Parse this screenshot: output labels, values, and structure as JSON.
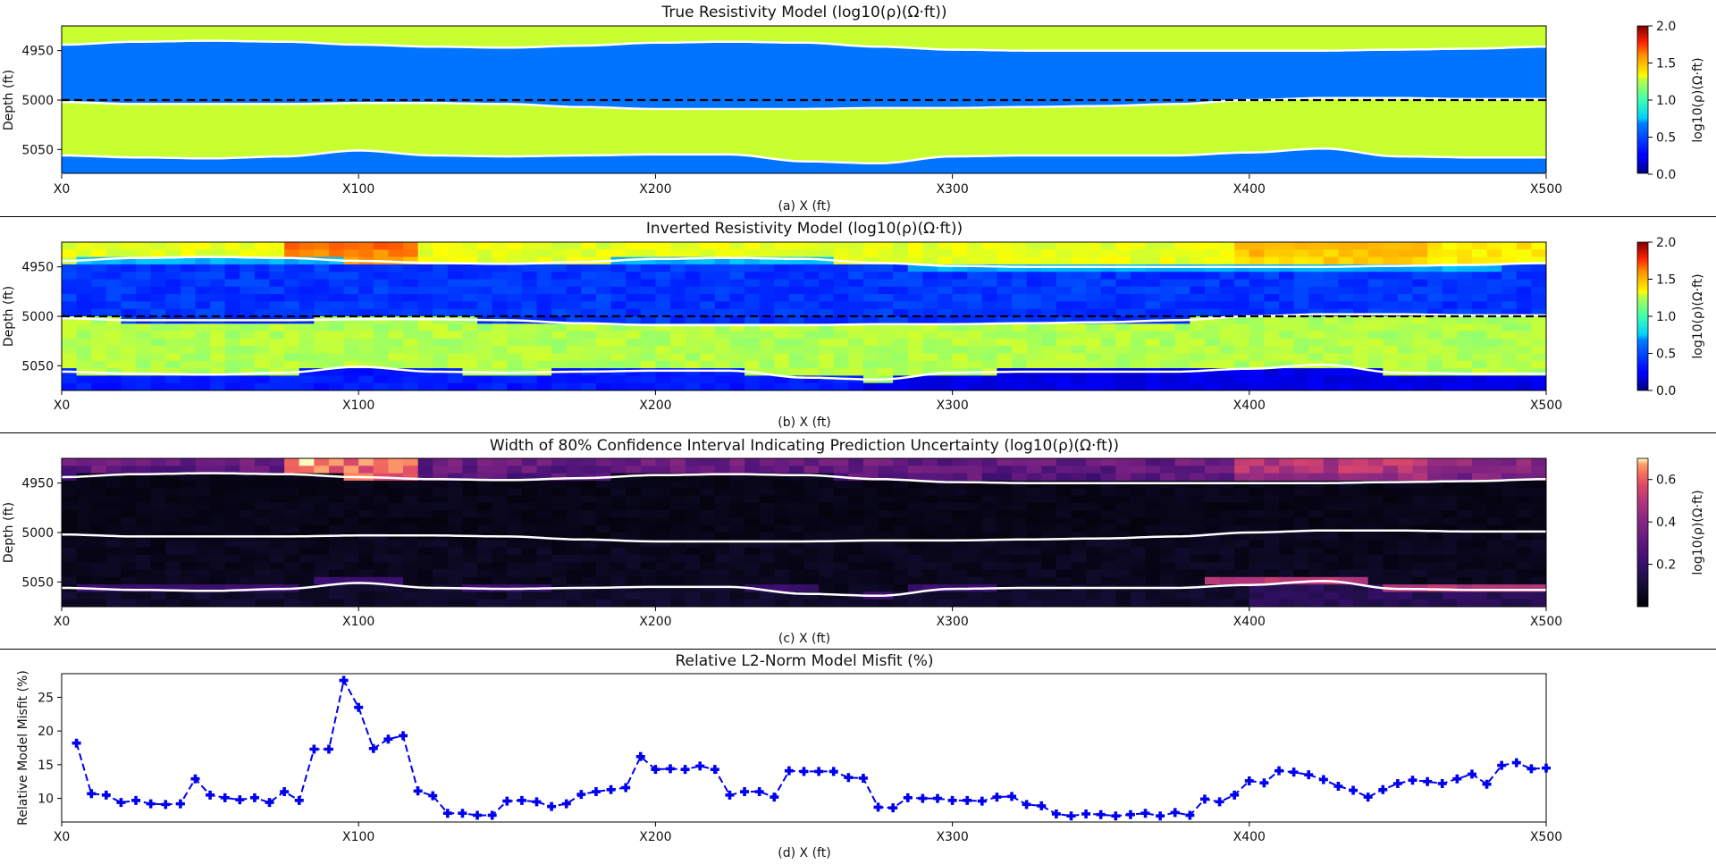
{
  "panels": [
    {
      "id": "a",
      "title": "True Resistivity Model (log10(ρ)(Ω·ft))",
      "xlabel": "(a) X (ft)",
      "ylabel": "Depth (ft)",
      "colorbar_label": "log10(ρ)(Ω·ft)",
      "colorbar_ticks": [
        "0.0",
        "0.5",
        "1.0",
        "1.5",
        "2.0"
      ],
      "colormap": "jet",
      "clim": [
        0,
        2
      ]
    },
    {
      "id": "b",
      "title": "Inverted Resistivity Model (log10(ρ)(Ω·ft))",
      "xlabel": "(b) X (ft)",
      "ylabel": "Depth (ft)",
      "colorbar_label": "log10(ρ)(Ω·ft)",
      "colorbar_ticks": [
        "0.0",
        "0.5",
        "1.0",
        "1.5",
        "2.0"
      ],
      "colormap": "jet",
      "clim": [
        0,
        2
      ]
    },
    {
      "id": "c",
      "title": "Width of 80% Confidence Interval Indicating Prediction Uncertainty (log10(ρ)(Ω·ft))",
      "xlabel": "(c) X (ft)",
      "ylabel": "Depth (ft)",
      "colorbar_label": "log10(ρ)(Ω·ft)",
      "colorbar_ticks": [
        "0.2",
        "0.4",
        "0.6"
      ],
      "colormap": "magma",
      "clim": [
        0,
        0.7
      ]
    }
  ],
  "misfit": {
    "title": "Relative L2-Norm Model Misfit (%)",
    "xlabel": "(d) X (ft)",
    "ylabel": "Relative Model Misfit (%)",
    "y_ticks": [
      "10",
      "15",
      "20",
      "25"
    ]
  },
  "x_ticks": [
    "X0",
    "X100",
    "X200",
    "X300",
    "X400",
    "X500"
  ],
  "depth_ticks": [
    "4950",
    "5000",
    "5050"
  ],
  "colors": {
    "conductive_layer": "#0073ff",
    "resistive_layer": "#c8ff30",
    "boundary_line": "#ffffff",
    "well_path": "#000000",
    "misfit_line": "#0000ee"
  },
  "chart_data": [
    {
      "type": "heatmap",
      "title": "True Resistivity Model (log10(ρ)(Ω·ft))",
      "xlabel": "(a) X (ft)",
      "ylabel": "Depth (ft)",
      "xlim": [
        0,
        500
      ],
      "ylim": [
        5075,
        4925
      ],
      "layer_values_log10_rho": [
        1.1,
        0.45,
        1.1,
        0.45
      ],
      "boundaries_x": [
        0,
        25,
        50,
        75,
        100,
        125,
        150,
        175,
        200,
        225,
        250,
        275,
        300,
        325,
        350,
        375,
        400,
        425,
        450,
        475,
        500
      ],
      "boundary_1_depth": [
        4944,
        4941,
        4940,
        4941,
        4944,
        4946,
        4947,
        4945,
        4942,
        4941,
        4942,
        4946,
        4949,
        4950,
        4950,
        4950,
        4950,
        4950,
        4949,
        4948,
        4946
      ],
      "boundary_2_depth": [
        5002,
        5004,
        5004,
        5004,
        5003,
        5003,
        5004,
        5007,
        5009,
        5009,
        5009,
        5008,
        5008,
        5007,
        5006,
        5004,
        5000,
        4998,
        4998,
        4999,
        4999
      ],
      "boundary_3_depth": [
        5056,
        5058,
        5059,
        5057,
        5051,
        5056,
        5057,
        5056,
        5055,
        5055,
        5062,
        5064,
        5057,
        5056,
        5056,
        5056,
        5053,
        5049,
        5057,
        5058,
        5058
      ],
      "well_path_depth": 5000
    },
    {
      "type": "heatmap",
      "title": "Inverted Resistivity Model (log10(ρ)(Ω·ft))",
      "xlabel": "(b) X (ft)",
      "ylabel": "Depth (ft)",
      "xlim": [
        0,
        500
      ],
      "ylim": [
        5075,
        4925
      ],
      "layer_values_log10_rho": [
        1.2,
        0.35,
        1.1,
        0.3
      ],
      "well_path_depth": 5000
    },
    {
      "type": "heatmap",
      "title": "Width of 80% Confidence Interval Indicating Prediction Uncertainty (log10(ρ)(Ω·ft))",
      "xlabel": "(c) X (ft)",
      "ylabel": "Depth (ft)",
      "xlim": [
        0,
        500
      ],
      "ylim": [
        5075,
        4925
      ],
      "clim": [
        0,
        0.7
      ]
    },
    {
      "type": "line",
      "title": "Relative L2-Norm Model Misfit (%)",
      "xlabel": "(d) X (ft)",
      "ylabel": "Relative Model Misfit (%)",
      "xlim": [
        0,
        500
      ],
      "ylim": [
        6.5,
        28.5
      ],
      "series": [
        {
          "x": [
            5,
            10,
            15,
            20,
            25,
            30,
            35,
            40,
            45,
            50,
            55,
            60,
            65,
            70,
            75,
            80,
            85,
            90,
            95,
            100,
            105,
            110,
            115,
            120,
            125,
            130,
            135,
            140,
            145,
            150,
            155,
            160,
            165,
            170,
            175,
            180,
            185,
            190,
            195,
            200,
            205,
            210,
            215,
            220,
            225,
            230,
            235,
            240,
            245,
            250,
            255,
            260,
            265,
            270,
            275,
            280,
            285,
            290,
            295,
            300,
            305,
            310,
            315,
            320,
            325,
            330,
            335,
            340,
            345,
            350,
            355,
            360,
            365,
            370,
            375,
            380,
            385,
            390,
            395,
            400,
            405,
            410,
            415,
            420,
            425,
            430,
            435,
            440,
            445,
            450,
            455,
            460,
            465,
            470,
            475,
            480,
            485,
            490,
            495,
            500
          ],
          "values": [
            18.2,
            10.7,
            10.5,
            9.4,
            9.7,
            9.2,
            9.1,
            9.2,
            12.9,
            10.5,
            10.1,
            9.8,
            10.1,
            9.4,
            11.0,
            9.7,
            17.3,
            17.3,
            27.5,
            23.5,
            17.4,
            18.8,
            19.3,
            11.1,
            10.4,
            7.8,
            7.8,
            7.5,
            7.5,
            9.6,
            9.7,
            9.5,
            8.8,
            9.2,
            10.6,
            11.0,
            11.3,
            11.6,
            16.2,
            14.3,
            14.4,
            14.3,
            14.8,
            14.3,
            10.5,
            11.0,
            11.0,
            10.2,
            14.1,
            14.0,
            14.0,
            14.0,
            13.1,
            13.0,
            8.7,
            8.6,
            10.1,
            10.0,
            10.0,
            9.7,
            9.7,
            9.6,
            10.2,
            10.3,
            9.1,
            8.9,
            7.7,
            7.4,
            7.7,
            7.6,
            7.4,
            7.6,
            7.8,
            7.4,
            7.9,
            7.5,
            9.9,
            9.5,
            10.5,
            12.6,
            12.3,
            14.1,
            13.9,
            13.5,
            12.8,
            11.8,
            11.2,
            10.2,
            11.3,
            12.2,
            12.7,
            12.5,
            12.2,
            12.9,
            13.6,
            12.1,
            14.9,
            15.3,
            14.4,
            14.5
          ]
        }
      ]
    }
  ]
}
